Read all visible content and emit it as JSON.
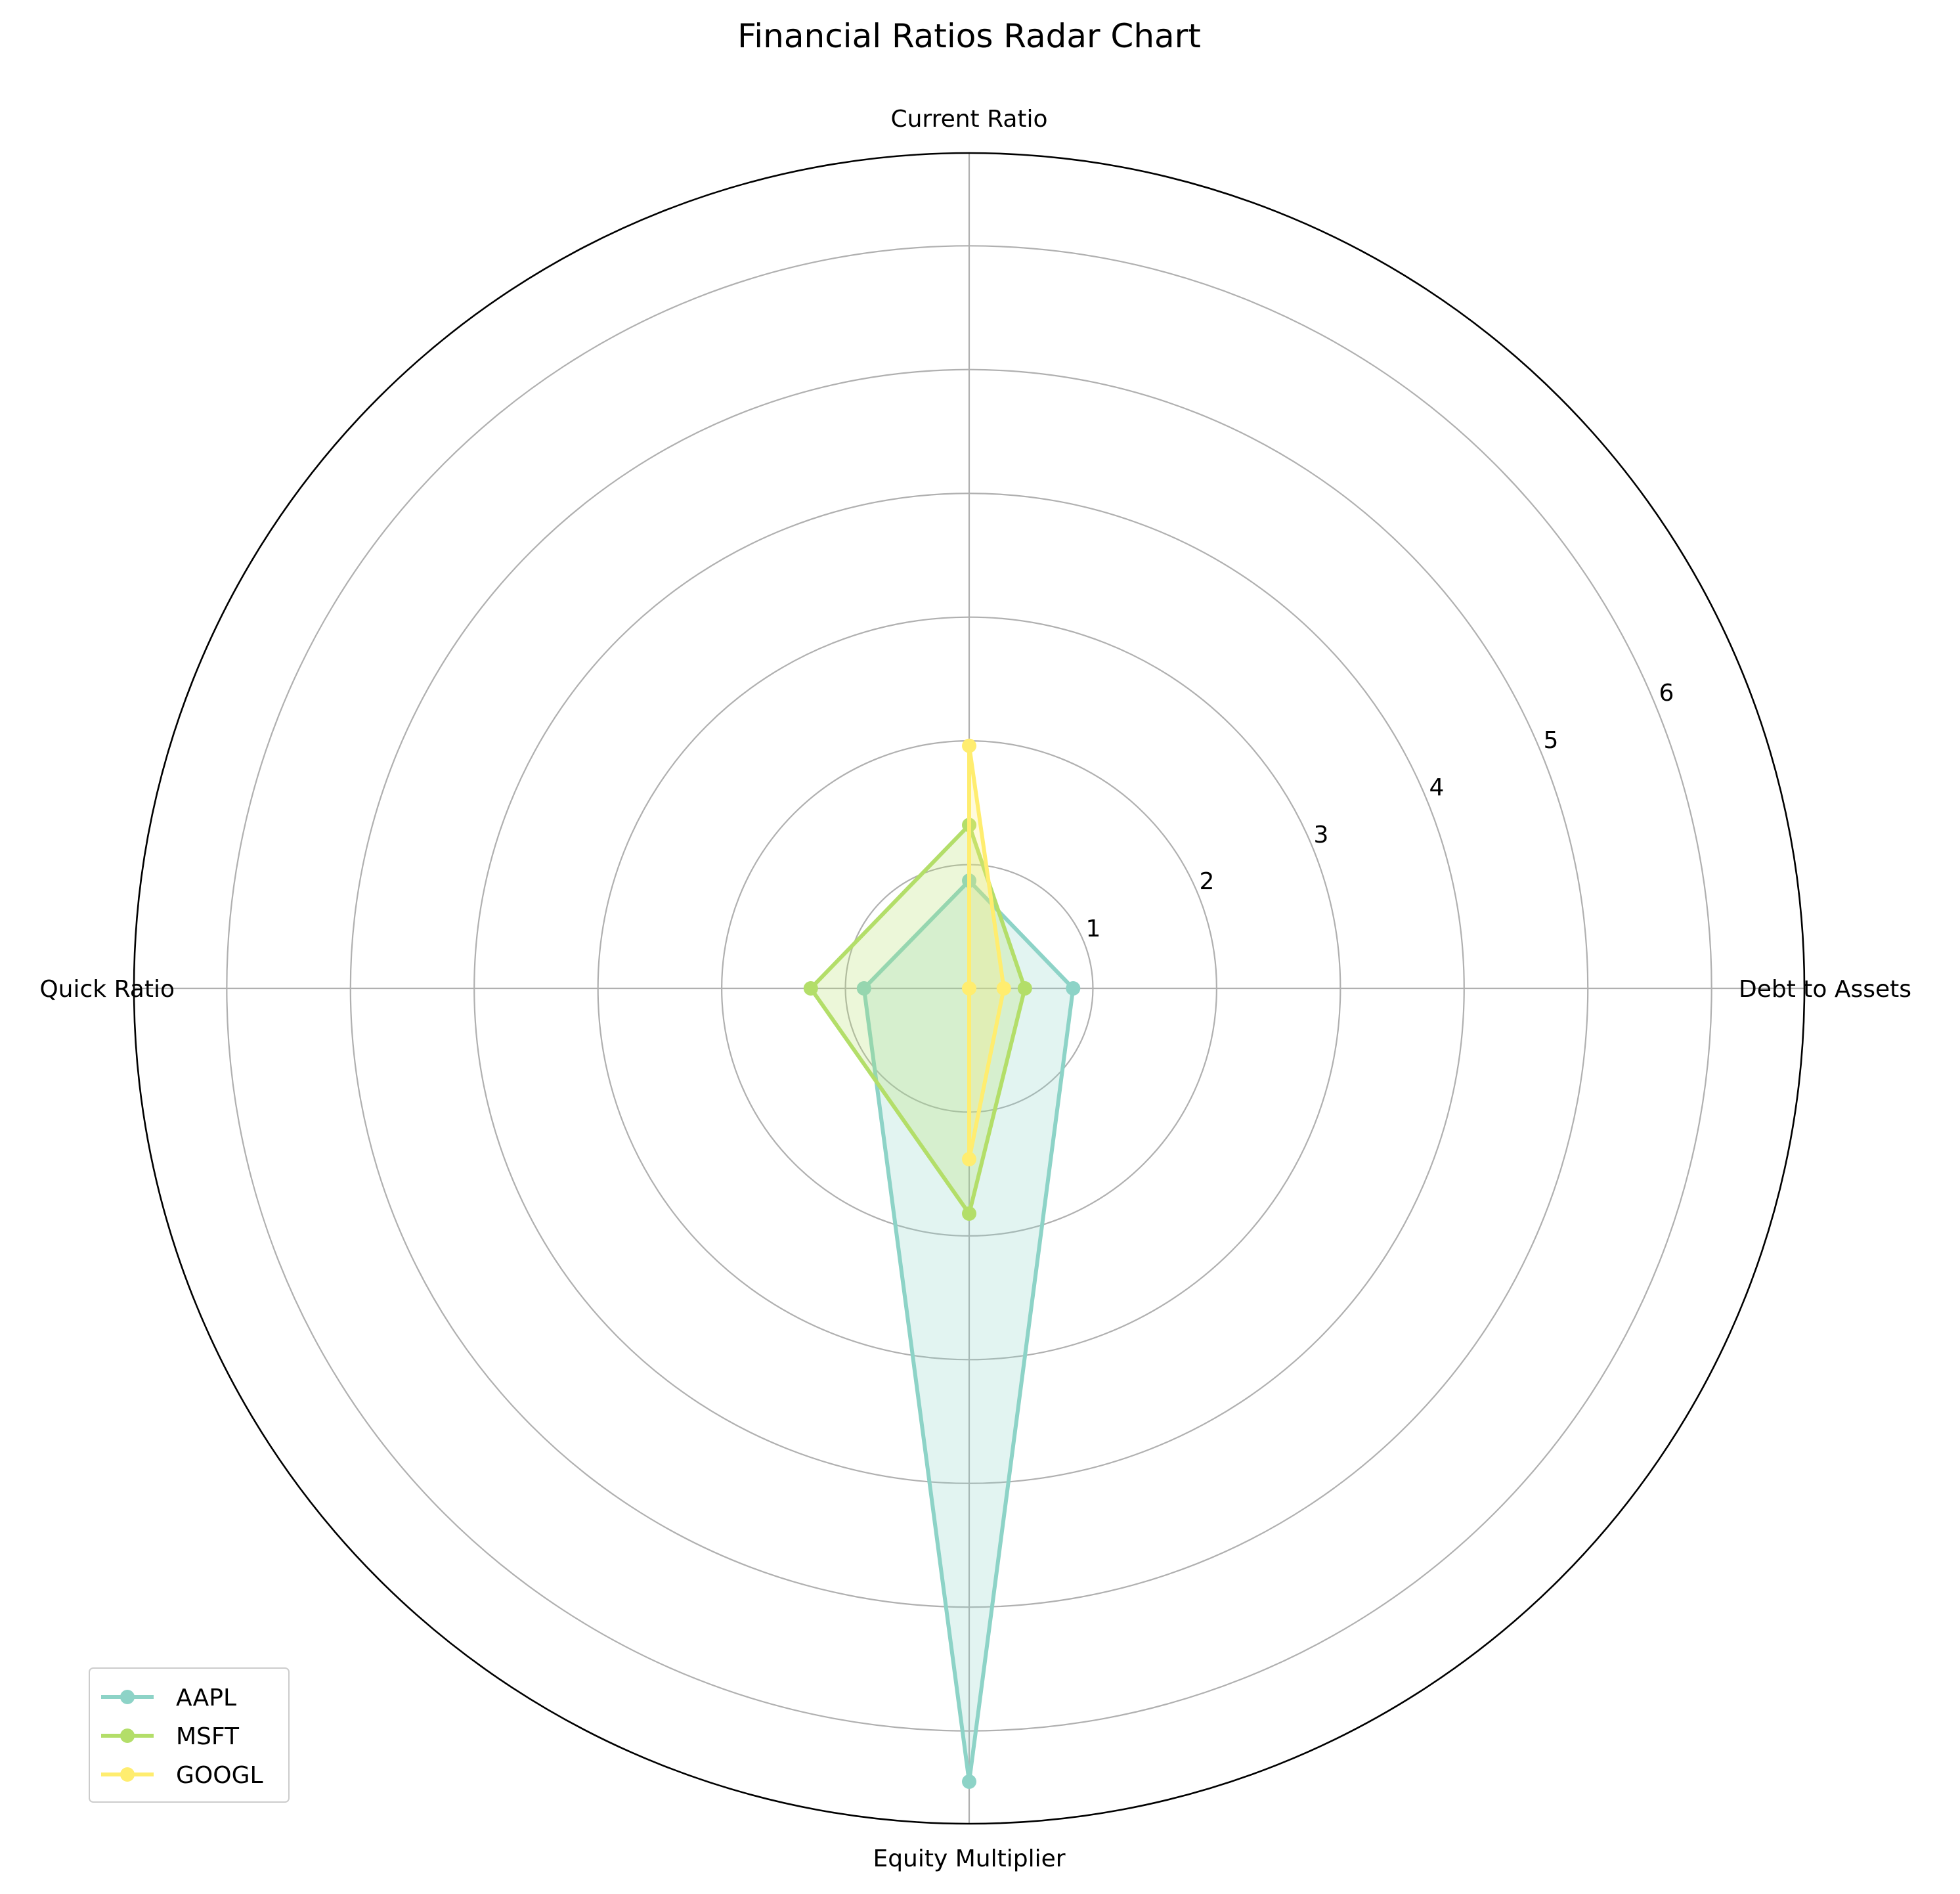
{
  "chart_data": {
    "type": "radar",
    "title": "Financial Ratios Radar Chart",
    "axes": [
      "Current Ratio",
      "Debt to Assets",
      "Equity Multiplier",
      "Quick Ratio"
    ],
    "rticks": [
      "1",
      "2",
      "3",
      "4",
      "5",
      "6"
    ],
    "rlim": [
      0,
      6.75
    ],
    "grid": true,
    "legend": "lower-left",
    "series": [
      {
        "name": "AAPL",
        "color": "#8dd3c7",
        "values": [
          0.87,
          0.84,
          6.41,
          0.85
        ]
      },
      {
        "name": "MSFT",
        "color": "#b3de69",
        "values": [
          1.32,
          0.45,
          1.82,
          1.28
        ]
      },
      {
        "name": "GOOGL",
        "color": "#ffed6f",
        "values": [
          1.96,
          0.28,
          1.38,
          0.0
        ]
      }
    ]
  }
}
